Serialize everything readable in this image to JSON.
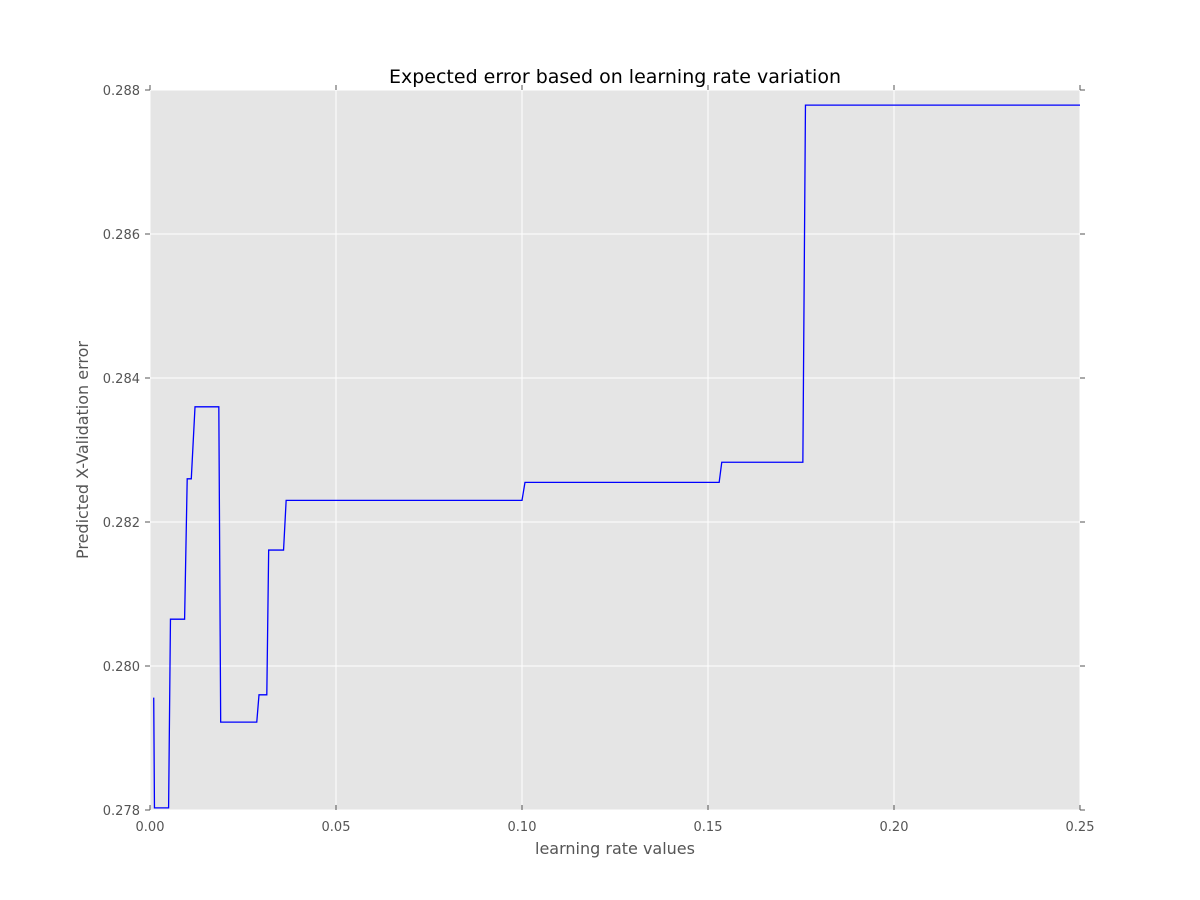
{
  "chart_data": {
    "type": "line",
    "title": "Expected error based on learning rate variation",
    "xlabel": "learning rate values",
    "ylabel": "Predicted X-Validation error",
    "xlim": [
      0.0,
      0.25
    ],
    "ylim": [
      0.278,
      0.288
    ],
    "x_ticks": [
      0.0,
      0.05,
      0.1,
      0.15,
      0.2,
      0.25
    ],
    "x_tick_labels": [
      "0.00",
      "0.05",
      "0.10",
      "0.15",
      "0.20",
      "0.25"
    ],
    "y_ticks": [
      0.278,
      0.28,
      0.282,
      0.284,
      0.286,
      0.288
    ],
    "y_tick_labels": [
      "0.278",
      "0.280",
      "0.282",
      "0.284",
      "0.286",
      "0.288"
    ],
    "grid": true,
    "background_color": "#e5e5e5",
    "grid_color": "#ffffff",
    "line_color": "#0000ff",
    "series": [
      {
        "x": [
          0.001,
          0.0012,
          0.005,
          0.0055,
          0.0093,
          0.01,
          0.0111,
          0.0121,
          0.0185,
          0.019,
          0.0287,
          0.0293,
          0.0314,
          0.0319,
          0.0359,
          0.0366,
          0.1,
          0.1008,
          0.153,
          0.1537,
          0.1755,
          0.1762,
          0.25
        ],
        "y": [
          0.27956,
          0.27803,
          0.27803,
          0.28065,
          0.28065,
          0.2826,
          0.2826,
          0.2836,
          0.2836,
          0.27922,
          0.27922,
          0.2796,
          0.2796,
          0.28161,
          0.28161,
          0.2823,
          0.2823,
          0.28255,
          0.28255,
          0.28283,
          0.28283,
          0.28779,
          0.28779
        ]
      }
    ]
  }
}
